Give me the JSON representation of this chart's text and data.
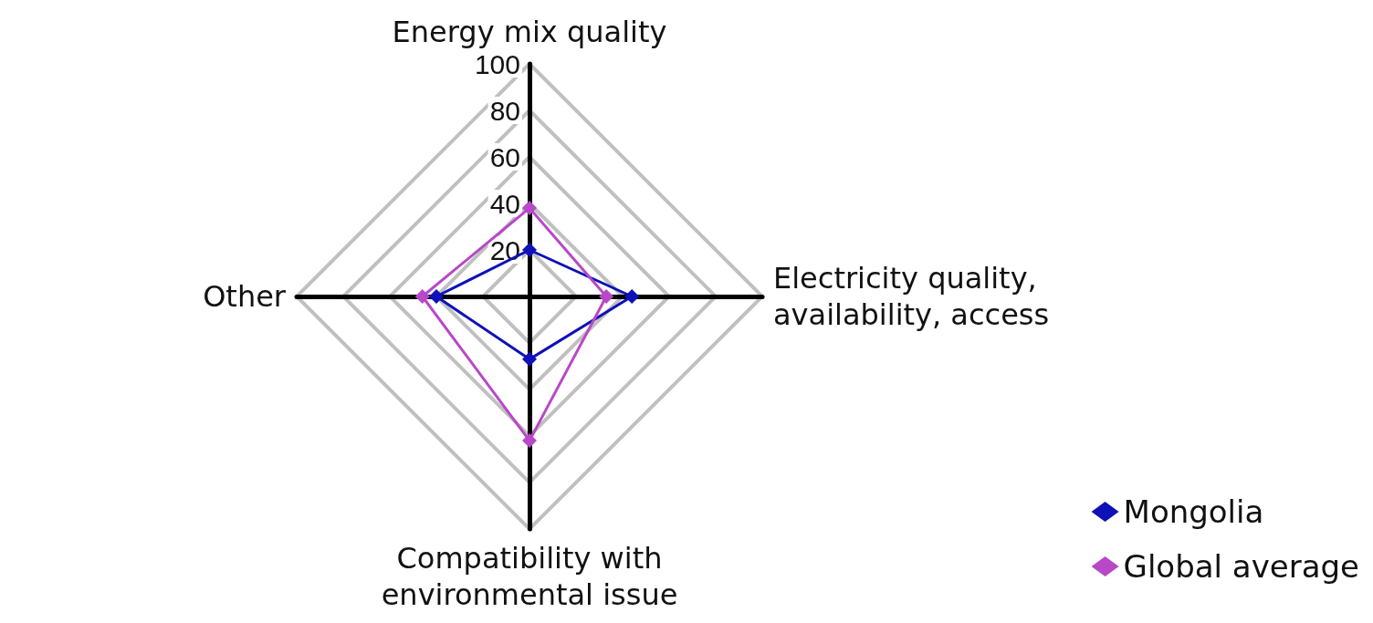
{
  "chart_data": {
    "type": "radar",
    "categories": [
      "Energy mix quality",
      "Electricity quality,\navailability, access",
      "Compatibility with\nenvironmental issue",
      "Other"
    ],
    "series": [
      {
        "name": "Mongolia",
        "color": "#1010b8",
        "values": [
          20,
          44,
          27,
          40
        ]
      },
      {
        "name": "Global average",
        "color": "#b848c8",
        "values": [
          38,
          33,
          62,
          46
        ]
      }
    ],
    "ylim": [
      0,
      100
    ],
    "yticks": [
      20,
      40,
      60,
      80,
      100
    ],
    "marker": "diamond",
    "legend": "bottom right",
    "grid": true
  }
}
